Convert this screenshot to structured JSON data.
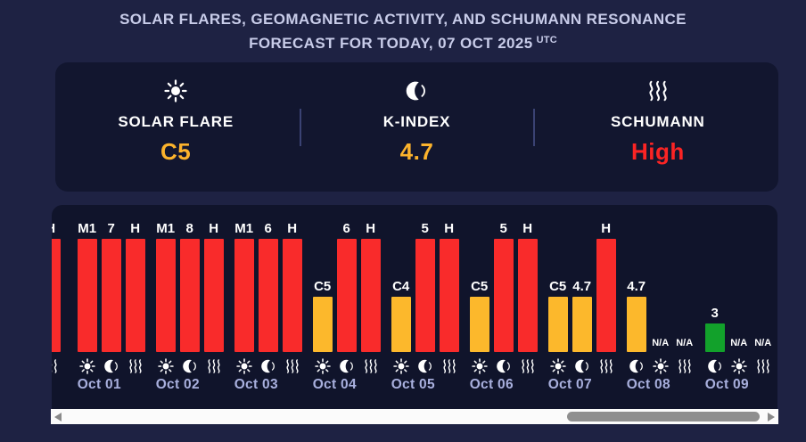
{
  "page": {
    "background": "#1e2243",
    "panel_background": "#10142b",
    "card_background": "#12162f"
  },
  "header": {
    "title_line1": "SOLAR FLARES, GEOMAGNETIC ACTIVITY, AND SCHUMANN RESONANCE",
    "title_line2": "FORECAST FOR TODAY, 07 OCT 2025",
    "title_suffix": "UTC"
  },
  "summary": {
    "cards": [
      {
        "id": "solar_flare",
        "icon": "sun",
        "label": "SOLAR FLARE",
        "value": "C5",
        "value_color": "#fcb32c"
      },
      {
        "id": "k_index",
        "icon": "moon",
        "label": "K-INDEX",
        "value": "4.7",
        "value_color": "#fcb32c"
      },
      {
        "id": "schumann",
        "icon": "waves",
        "label": "SCHUMANN",
        "value": "High",
        "value_color": "#fb2424"
      }
    ]
  },
  "chart_data": {
    "type": "bar",
    "scroll_position": "end",
    "colors": {
      "red": "#f92b2b",
      "orange": "#fcb82c",
      "green": "#12a12b"
    },
    "size_heights": {
      "full": 127,
      "half": 62,
      "low": 32
    },
    "text_color": "#ffffff",
    "date_color": "#a9b0de",
    "days": [
      {
        "date": "",
        "clipped": true,
        "bars": [
          {
            "metric": "schumann",
            "icon": "waves",
            "label": "H",
            "color": "red",
            "size": "full",
            "slot": 2
          }
        ]
      },
      {
        "date": "Oct 01",
        "bars": [
          {
            "metric": "solar_flare",
            "icon": "sun",
            "label": "M1",
            "color": "red",
            "size": "full"
          },
          {
            "metric": "k_index",
            "icon": "moon",
            "label": "7",
            "color": "red",
            "size": "full"
          },
          {
            "metric": "schumann",
            "icon": "waves",
            "label": "H",
            "color": "red",
            "size": "full"
          }
        ]
      },
      {
        "date": "Oct 02",
        "bars": [
          {
            "metric": "solar_flare",
            "icon": "sun",
            "label": "M1",
            "color": "red",
            "size": "full"
          },
          {
            "metric": "k_index",
            "icon": "moon",
            "label": "8",
            "color": "red",
            "size": "full"
          },
          {
            "metric": "schumann",
            "icon": "waves",
            "label": "H",
            "color": "red",
            "size": "full"
          }
        ]
      },
      {
        "date": "Oct 03",
        "bars": [
          {
            "metric": "solar_flare",
            "icon": "sun",
            "label": "M1",
            "color": "red",
            "size": "full"
          },
          {
            "metric": "k_index",
            "icon": "moon",
            "label": "6",
            "color": "red",
            "size": "full"
          },
          {
            "metric": "schumann",
            "icon": "waves",
            "label": "H",
            "color": "red",
            "size": "full"
          }
        ]
      },
      {
        "date": "Oct 04",
        "bars": [
          {
            "metric": "solar_flare",
            "icon": "sun",
            "label": "C5",
            "color": "orange",
            "size": "half"
          },
          {
            "metric": "k_index",
            "icon": "moon",
            "label": "6",
            "color": "red",
            "size": "full"
          },
          {
            "metric": "schumann",
            "icon": "waves",
            "label": "H",
            "color": "red",
            "size": "full"
          }
        ]
      },
      {
        "date": "Oct 05",
        "bars": [
          {
            "metric": "solar_flare",
            "icon": "sun",
            "label": "C4",
            "color": "orange",
            "size": "half"
          },
          {
            "metric": "k_index",
            "icon": "moon",
            "label": "5",
            "color": "red",
            "size": "full"
          },
          {
            "metric": "schumann",
            "icon": "waves",
            "label": "H",
            "color": "red",
            "size": "full"
          }
        ]
      },
      {
        "date": "Oct 06",
        "bars": [
          {
            "metric": "solar_flare",
            "icon": "sun",
            "label": "C5",
            "color": "orange",
            "size": "half"
          },
          {
            "metric": "k_index",
            "icon": "moon",
            "label": "5",
            "color": "red",
            "size": "full"
          },
          {
            "metric": "schumann",
            "icon": "waves",
            "label": "H",
            "color": "red",
            "size": "full"
          }
        ]
      },
      {
        "date": "Oct 07",
        "bars": [
          {
            "metric": "solar_flare",
            "icon": "sun",
            "label": "C5",
            "color": "orange",
            "size": "half"
          },
          {
            "metric": "k_index",
            "icon": "moon",
            "label": "4.7",
            "color": "orange",
            "size": "half"
          },
          {
            "metric": "schumann",
            "icon": "waves",
            "label": "H",
            "color": "red",
            "size": "full"
          }
        ]
      },
      {
        "date": "Oct 08",
        "bars": [
          {
            "metric": "k_index",
            "icon": "moon",
            "label": "4.7",
            "color": "orange",
            "size": "half"
          },
          {
            "metric": "solar_flare",
            "icon": "sun",
            "label": "N/A",
            "size": "none"
          },
          {
            "metric": "schumann",
            "icon": "waves",
            "label": "N/A",
            "size": "none"
          }
        ]
      },
      {
        "date": "Oct 09",
        "bars": [
          {
            "metric": "k_index",
            "icon": "moon",
            "label": "3",
            "color": "green",
            "size": "low"
          },
          {
            "metric": "solar_flare",
            "icon": "sun",
            "label": "N/A",
            "size": "none"
          },
          {
            "metric": "schumann",
            "icon": "waves",
            "label": "N/A",
            "size": "none"
          }
        ]
      }
    ]
  }
}
